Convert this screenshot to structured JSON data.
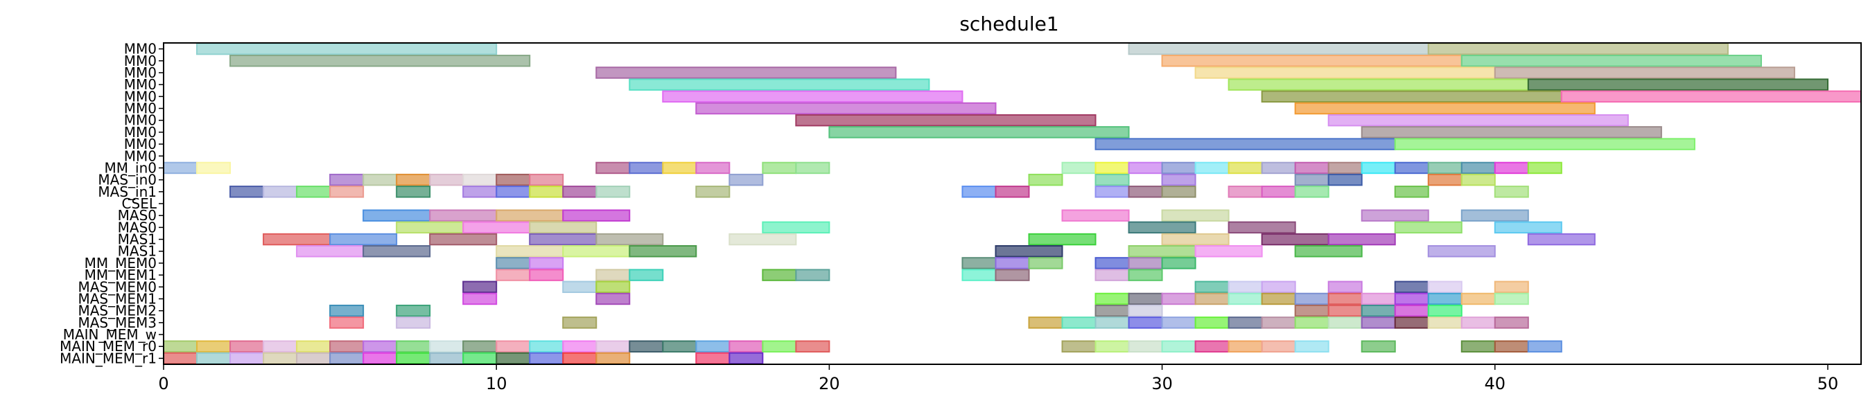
{
  "chart_data": {
    "type": "gantt",
    "title": "schedule1",
    "xlabel": "",
    "ylabel": "",
    "xlim": [
      0,
      51
    ],
    "xticks": [
      0,
      10,
      20,
      30,
      40,
      50
    ],
    "grid": false,
    "categories": [
      "MM0",
      "MM0",
      "MM0",
      "MM0",
      "MM0",
      "MM0",
      "MM0",
      "MM0",
      "MM0",
      "MM0",
      "MM_in0",
      "MAS_in0",
      "MAS_in1",
      "CSEL",
      "MAS0",
      "MAS0",
      "MAS1",
      "MAS1",
      "MM_MEM0",
      "MM_MEM1",
      "MAS_MEM0",
      "MAS_MEM1",
      "MAS_MEM2",
      "MAS_MEM3",
      "MAIN_MEM_w",
      "MAIN_MEM_r0",
      "MAIN_MEM_r1"
    ],
    "rows": [
      [
        [
          1,
          10,
          "#8fd1cf"
        ],
        [
          29,
          38,
          "#b6c9c9"
        ],
        [
          38,
          47,
          "#b3ba83"
        ]
      ],
      [
        [
          2,
          11,
          "#87a887"
        ],
        [
          30,
          39,
          "#f5ab6c"
        ],
        [
          39,
          48,
          "#6cd18a"
        ]
      ],
      [
        [
          13,
          22,
          "#a86aa6"
        ],
        [
          31,
          40,
          "#f2d98a"
        ],
        [
          40,
          49,
          "#b99e94"
        ]
      ],
      [
        [
          14,
          23,
          "#58e0c4"
        ],
        [
          32,
          41,
          "#a2e65c"
        ],
        [
          41,
          50,
          "#356b35"
        ]
      ],
      [
        [
          15,
          24,
          "#e06cf2"
        ],
        [
          33,
          42,
          "#8a9a42"
        ],
        [
          42,
          51,
          "#f56cb2"
        ]
      ],
      [
        [
          16,
          25,
          "#c25ccf"
        ],
        [
          34,
          43,
          "#f29a33"
        ]
      ],
      [
        [
          19,
          28,
          "#a13a62"
        ],
        [
          35,
          44,
          "#d68ef0"
        ]
      ],
      [
        [
          20,
          29,
          "#54c27c"
        ],
        [
          36,
          45,
          "#9a8a8a"
        ]
      ],
      [
        [
          28,
          37,
          "#4a74c9"
        ],
        [
          37,
          46,
          "#7ff06c"
        ]
      ],
      [],
      [
        [
          0,
          1,
          "#8fb0df"
        ],
        [
          1,
          2,
          "#faf5a3"
        ],
        [
          13,
          14,
          "#b05c8c"
        ],
        [
          14,
          15,
          "#5c6ed1"
        ],
        [
          15,
          16,
          "#f0d03c"
        ],
        [
          16,
          17,
          "#d96ac7"
        ],
        [
          18,
          19,
          "#8fe07a"
        ],
        [
          19,
          20,
          "#8fe08f"
        ],
        [
          27,
          28,
          "#a3f0b5"
        ],
        [
          28,
          29,
          "#ecf53a"
        ],
        [
          29,
          30,
          "#c77af0"
        ],
        [
          30,
          31,
          "#7f8fd1"
        ],
        [
          31,
          32,
          "#7ae8f5"
        ],
        [
          32,
          33,
          "#dde047"
        ],
        [
          33,
          34,
          "#a3a3d1"
        ],
        [
          34,
          35,
          "#c25cb0"
        ],
        [
          35,
          36,
          "#a87f7f"
        ],
        [
          36,
          37,
          "#3ce8f5"
        ],
        [
          37,
          38,
          "#4a6ad1"
        ],
        [
          38,
          39,
          "#6cb896"
        ],
        [
          39,
          40,
          "#4a8fa8"
        ],
        [
          40,
          41,
          "#e03cd9"
        ],
        [
          41,
          42,
          "#8ee83c"
        ]
      ],
      [
        [
          5,
          6,
          "#a06ac9"
        ],
        [
          6,
          7,
          "#b8c9a3"
        ],
        [
          7,
          8,
          "#e08f33"
        ],
        [
          8,
          9,
          "#d9b8c9"
        ],
        [
          9,
          10,
          "#e0d9d9"
        ],
        [
          10,
          11,
          "#a15c5c"
        ],
        [
          11,
          12,
          "#e07a8f"
        ],
        [
          17,
          18,
          "#8fa0d1"
        ],
        [
          26,
          27,
          "#8fe05c"
        ],
        [
          28,
          29,
          "#6cd1a3"
        ],
        [
          30,
          31,
          "#a37ae0"
        ],
        [
          34,
          35,
          "#7a8fb8"
        ],
        [
          35,
          36,
          "#3c5ca8"
        ],
        [
          38,
          39,
          "#e07a3c"
        ],
        [
          39,
          40,
          "#b8e05c"
        ]
      ],
      [
        [
          2,
          3,
          "#4a5ca8"
        ],
        [
          3,
          4,
          "#b8b8e0"
        ],
        [
          4,
          5,
          "#6ae06a"
        ],
        [
          5,
          6,
          "#eb9a8f"
        ],
        [
          7,
          8,
          "#3c8f6a"
        ],
        [
          9,
          10,
          "#a37ae0"
        ],
        [
          10,
          11,
          "#5c6ae0"
        ],
        [
          11,
          12,
          "#c9e03c"
        ],
        [
          12,
          13,
          "#a14a9a"
        ],
        [
          13,
          14,
          "#a3d1b8"
        ],
        [
          16,
          17,
          "#a8b87a"
        ],
        [
          24,
          25,
          "#5c8ff0"
        ],
        [
          25,
          26,
          "#c23c8f"
        ],
        [
          28,
          29,
          "#8f8ff0"
        ],
        [
          29,
          30,
          "#8f5c7a"
        ],
        [
          30,
          31,
          "#8f8f6a"
        ],
        [
          32,
          33,
          "#e07ab8"
        ],
        [
          33,
          34,
          "#d95cc2"
        ],
        [
          34,
          35,
          "#7fe08f"
        ],
        [
          37,
          38,
          "#6ac24a"
        ],
        [
          40,
          41,
          "#a3e07a"
        ]
      ],
      [],
      [
        [
          6,
          8,
          "#4a8fe0"
        ],
        [
          8,
          10,
          "#c97ab8"
        ],
        [
          10,
          12,
          "#d9a86a"
        ],
        [
          12,
          14,
          "#c23cd1"
        ],
        [
          27,
          29,
          "#f07ad1"
        ],
        [
          30,
          32,
          "#c9d9a3"
        ],
        [
          36,
          38,
          "#b87ac9"
        ],
        [
          39,
          41,
          "#7aa3c9"
        ]
      ],
      [
        [
          7,
          9,
          "#b8e06a"
        ],
        [
          9,
          11,
          "#f07ae0"
        ],
        [
          11,
          13,
          "#c9c98f"
        ],
        [
          18,
          20,
          "#5cf0b8"
        ],
        [
          29,
          31,
          "#3c7a7a"
        ],
        [
          32,
          34,
          "#8a4a7a"
        ],
        [
          37,
          39,
          "#8fe06a"
        ],
        [
          40,
          42,
          "#5cc9f0"
        ]
      ],
      [
        [
          3,
          5,
          "#e05c5c"
        ],
        [
          5,
          7,
          "#5c8fe0"
        ],
        [
          8,
          10,
          "#a35c6a"
        ],
        [
          11,
          13,
          "#7a5cb8"
        ],
        [
          13,
          15,
          "#a3a38f"
        ],
        [
          17,
          19,
          "#d9e0c9"
        ],
        [
          26,
          28,
          "#3cd13c"
        ],
        [
          30,
          32,
          "#e0c98f"
        ],
        [
          33,
          35,
          "#7a2e6a"
        ],
        [
          35,
          37,
          "#a33cb8"
        ],
        [
          41,
          43,
          "#8f6ae0"
        ]
      ],
      [
        [
          4,
          6,
          "#e08ff0"
        ],
        [
          6,
          8,
          "#5c6a8f"
        ],
        [
          10,
          12,
          "#e0d9a3"
        ],
        [
          12,
          14,
          "#c9f07a"
        ],
        [
          14,
          16,
          "#4a9a4a"
        ],
        [
          25,
          27,
          "#2e3c6a"
        ],
        [
          29,
          31,
          "#8fd16a"
        ],
        [
          31,
          33,
          "#f08ff0"
        ],
        [
          34,
          36,
          "#4ab84a"
        ],
        [
          38,
          40,
          "#a38fe0"
        ]
      ],
      [
        [
          10,
          11,
          "#5c8faf"
        ],
        [
          11,
          12,
          "#c97af0"
        ],
        [
          24,
          25,
          "#5c8f7a"
        ],
        [
          25,
          26,
          "#8a6ae0"
        ],
        [
          26,
          27,
          "#7ac96a"
        ],
        [
          28,
          29,
          "#4a5cd1"
        ],
        [
          29,
          30,
          "#a37ab8"
        ],
        [
          30,
          31,
          "#3cb86a"
        ]
      ],
      [
        [
          10,
          11,
          "#f08fa3"
        ],
        [
          11,
          12,
          "#f05cb8"
        ],
        [
          13,
          14,
          "#d1c9a3"
        ],
        [
          14,
          15,
          "#3cd1b8"
        ],
        [
          18,
          19,
          "#5cb83c"
        ],
        [
          19,
          20,
          "#5ca39a"
        ],
        [
          24,
          25,
          "#5cf0c9"
        ],
        [
          25,
          26,
          "#8f6a7a"
        ],
        [
          28,
          29,
          "#d1a3d9"
        ],
        [
          29,
          30,
          "#5cc96a"
        ]
      ],
      [
        [
          9,
          10,
          "#5c2e8f"
        ],
        [
          12,
          13,
          "#a3c9e0"
        ],
        [
          13,
          14,
          "#a3d13c"
        ],
        [
          31,
          32,
          "#4ab89a"
        ],
        [
          32,
          33,
          "#c9c9f0"
        ],
        [
          33,
          34,
          "#c9a3f0"
        ],
        [
          35,
          36,
          "#c97ae0"
        ],
        [
          37,
          38,
          "#3c4a8f"
        ],
        [
          38,
          39,
          "#d9c9f0"
        ],
        [
          40,
          41,
          "#f0b87a"
        ]
      ],
      [
        [
          9,
          10,
          "#d14ae0"
        ],
        [
          13,
          14,
          "#a34ab8"
        ],
        [
          28,
          29,
          "#6cf03c"
        ],
        [
          29,
          30,
          "#6a6a7a"
        ],
        [
          30,
          31,
          "#c97ad1"
        ],
        [
          31,
          32,
          "#c9a36a"
        ],
        [
          32,
          33,
          "#8ff0c9"
        ],
        [
          33,
          34,
          "#b89a3c"
        ],
        [
          34,
          35,
          "#7a8fd1"
        ],
        [
          35,
          36,
          "#e05c5c"
        ],
        [
          36,
          37,
          "#e08fd9"
        ],
        [
          37,
          38,
          "#a33ce0"
        ],
        [
          38,
          39,
          "#3ca3d1"
        ],
        [
          39,
          40,
          "#f0b86a"
        ],
        [
          40,
          41,
          "#a3f0a3"
        ]
      ],
      [
        [
          5,
          6,
          "#3c8fb8"
        ],
        [
          7,
          8,
          "#3ca37a"
        ],
        [
          28,
          29,
          "#7a7a7a"
        ],
        [
          29,
          30,
          "#c9c9e0"
        ],
        [
          34,
          35,
          "#a86a5c"
        ],
        [
          35,
          36,
          "#e05c5c"
        ],
        [
          36,
          37,
          "#3c8f8f"
        ],
        [
          37,
          38,
          "#c93cd1"
        ],
        [
          38,
          39,
          "#3cf07a"
        ]
      ],
      [
        [
          5,
          6,
          "#f06a7a"
        ],
        [
          7,
          8,
          "#c9b8e0"
        ],
        [
          12,
          13,
          "#a3a35c"
        ],
        [
          26,
          27,
          "#c9a33c"
        ],
        [
          27,
          28,
          "#5ce0b8"
        ],
        [
          28,
          29,
          "#8fc9c9"
        ],
        [
          29,
          30,
          "#5c5ce0"
        ],
        [
          30,
          31,
          "#8fa3e0"
        ],
        [
          31,
          32,
          "#6af03c"
        ],
        [
          32,
          33,
          "#5c6a8f"
        ],
        [
          33,
          34,
          "#b88fa3"
        ],
        [
          34,
          35,
          "#8fe06a"
        ],
        [
          35,
          36,
          "#b8e0b8"
        ],
        [
          36,
          37,
          "#8f5cb8"
        ],
        [
          37,
          38,
          "#6a2e3c"
        ],
        [
          38,
          39,
          "#e0d9a3"
        ],
        [
          39,
          40,
          "#e0a3d9"
        ],
        [
          40,
          41,
          "#b86a9a"
        ]
      ],
      [],
      [
        [
          0,
          1,
          "#a3c96a"
        ],
        [
          1,
          2,
          "#e0b83c"
        ],
        [
          2,
          3,
          "#e06a8f"
        ],
        [
          3,
          4,
          "#e0b8e0"
        ],
        [
          4,
          5,
          "#e0e06a"
        ],
        [
          5,
          6,
          "#c26a7a"
        ],
        [
          6,
          7,
          "#b86ae0"
        ],
        [
          7,
          8,
          "#6ad16a"
        ],
        [
          8,
          9,
          "#c9e0e0"
        ],
        [
          9,
          10,
          "#6a8f6a"
        ],
        [
          10,
          11,
          "#f08fa3"
        ],
        [
          11,
          12,
          "#5ce0e0"
        ],
        [
          12,
          13,
          "#f07af0"
        ],
        [
          13,
          14,
          "#e0b8e0"
        ],
        [
          14,
          15,
          "#3c5c6a"
        ],
        [
          15,
          16,
          "#3c7a6a"
        ],
        [
          16,
          17,
          "#5ca3e0"
        ],
        [
          17,
          18,
          "#e05cb8"
        ],
        [
          18,
          19,
          "#7af05c"
        ],
        [
          19,
          20,
          "#e05c5c"
        ],
        [
          27,
          28,
          "#a3a35c"
        ],
        [
          28,
          29,
          "#b8f07a"
        ],
        [
          29,
          30,
          "#c9e0c9"
        ],
        [
          30,
          31,
          "#8ff0c9"
        ],
        [
          31,
          32,
          "#e03c8f"
        ],
        [
          32,
          33,
          "#f0a35c"
        ],
        [
          33,
          34,
          "#f0a38f"
        ],
        [
          34,
          35,
          "#8fe0f0"
        ],
        [
          36,
          37,
          "#5cb85c"
        ],
        [
          39,
          40,
          "#5c8f3c"
        ],
        [
          40,
          41,
          "#a35c3c"
        ],
        [
          41,
          42,
          "#5c8fe0"
        ]
      ],
      [
        [
          0,
          1,
          "#e05c5c"
        ],
        [
          1,
          2,
          "#8fc9c9"
        ],
        [
          2,
          3,
          "#c9a3f0"
        ],
        [
          3,
          4,
          "#d1c9a3"
        ],
        [
          4,
          5,
          "#c9b8b8"
        ],
        [
          5,
          6,
          "#7a8fc9"
        ],
        [
          6,
          7,
          "#e03ce0"
        ],
        [
          7,
          8,
          "#3ce03c"
        ],
        [
          8,
          9,
          "#8fb8c9"
        ],
        [
          9,
          10,
          "#3ce05c"
        ],
        [
          10,
          11,
          "#3c6a3c"
        ],
        [
          11,
          12,
          "#5c6ae0"
        ],
        [
          12,
          13,
          "#f03c3c"
        ],
        [
          13,
          14,
          "#e08f3c"
        ],
        [
          16,
          17,
          "#f03c6a"
        ],
        [
          17,
          18,
          "#6a2ec9"
        ]
      ]
    ]
  }
}
